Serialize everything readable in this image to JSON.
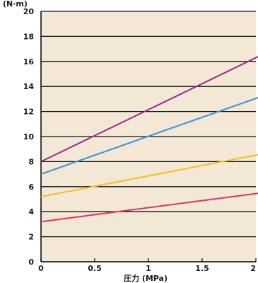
{
  "chart_data": {
    "type": "line",
    "title": "",
    "xlabel": "圧力 (MPa)",
    "ylabel": "(N·m)",
    "xlim": [
      0,
      2
    ],
    "ylim": [
      0,
      20
    ],
    "x_ticks": [
      0,
      0.5,
      1,
      1.5,
      2
    ],
    "x_tick_labels": [
      "0",
      "0.5",
      "1",
      "1.5",
      "2"
    ],
    "y_ticks": [
      0,
      2,
      4,
      6,
      8,
      10,
      12,
      14,
      16,
      18,
      20
    ],
    "y_tick_labels": [
      "0",
      "2",
      "4",
      "6",
      "8",
      "10",
      "12",
      "14",
      "16",
      "18",
      "20"
    ],
    "grid": "horizontal",
    "plot_background": "#f3e7d5",
    "series": [
      {
        "name": "",
        "color": "#9a2a8a",
        "x": [
          0,
          2.05
        ],
        "y": [
          8.0,
          16.5
        ]
      },
      {
        "name": "",
        "color": "#3a92d6",
        "x": [
          0,
          2.05
        ],
        "y": [
          7.0,
          13.2
        ]
      },
      {
        "name": "",
        "color": "#f2c21c",
        "x": [
          0,
          2.05
        ],
        "y": [
          5.2,
          8.6
        ]
      },
      {
        "name": "",
        "color": "#e0306e",
        "x": [
          0,
          2.05
        ],
        "y": [
          3.2,
          5.5
        ]
      }
    ]
  }
}
